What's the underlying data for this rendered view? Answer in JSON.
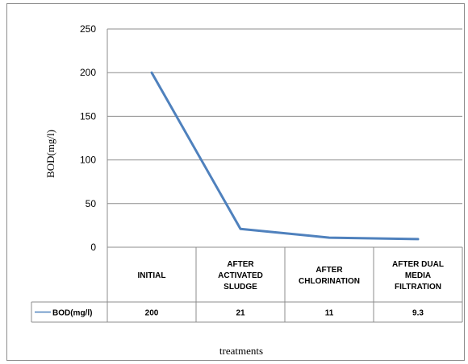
{
  "chart_data": {
    "type": "line",
    "title": "",
    "xlabel": "treatments",
    "ylabel": "BOD(mg/l)",
    "ylim": [
      0,
      250
    ],
    "yticks": [
      "250",
      "200",
      "150",
      "100",
      "50",
      "0"
    ],
    "yticks_values": [
      250,
      200,
      150,
      100,
      50,
      0
    ],
    "grid": true,
    "legend_placement": "data-table-left",
    "categories": [
      [
        "INITIAL"
      ],
      [
        "AFTER",
        "ACTIVATED",
        "SLUDGE"
      ],
      [
        "AFTER",
        "CHLORINATION"
      ],
      [
        "AFTER DUAL",
        "MEDIA",
        "FILTRATION"
      ]
    ],
    "series": [
      {
        "name": "BOD(mg/l)",
        "values": [
          200,
          21,
          11,
          9.3
        ],
        "value_labels": [
          "200",
          "21",
          "11",
          "9.3"
        ],
        "color": "#4f81bd"
      }
    ]
  }
}
